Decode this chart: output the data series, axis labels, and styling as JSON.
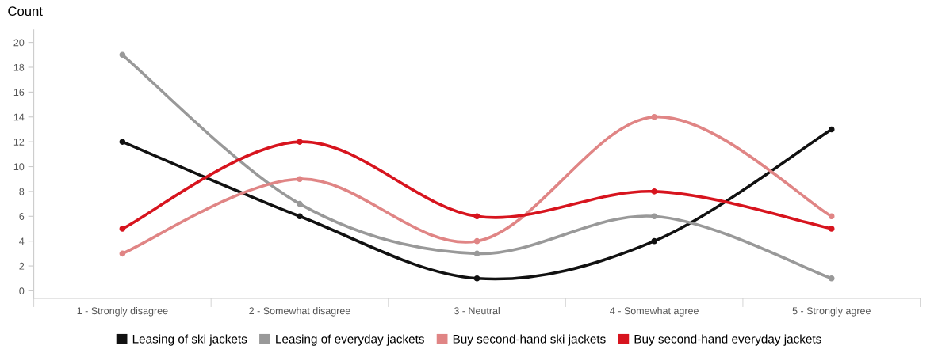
{
  "chart_data": {
    "type": "line",
    "ylabel": "Count",
    "categories": [
      "1 - Strongly disagree",
      "2 - Somewhat disagree",
      "3 - Neutral",
      "4 - Somewhat agree",
      "5 - Strongly agree"
    ],
    "series": [
      {
        "name": "Leasing of ski jackets",
        "color": "#111111",
        "values": [
          12,
          6,
          1,
          4,
          13
        ]
      },
      {
        "name": "Leasing of everyday jackets",
        "color": "#999999",
        "values": [
          19,
          7,
          3,
          6,
          1
        ]
      },
      {
        "name": "Buy second-hand ski jackets",
        "color": "#e08585",
        "values": [
          3,
          9,
          4,
          14,
          6
        ]
      },
      {
        "name": "Buy second-hand everyday jackets",
        "color": "#d7141e",
        "values": [
          5,
          12,
          6,
          8,
          5
        ]
      }
    ],
    "ylim": [
      -0.6,
      21
    ],
    "yticks": [
      0,
      2,
      4,
      6,
      8,
      10,
      12,
      14,
      16,
      18,
      20
    ],
    "grid": false,
    "legend": "bottom",
    "marker": "circle",
    "line_style": "solid"
  }
}
